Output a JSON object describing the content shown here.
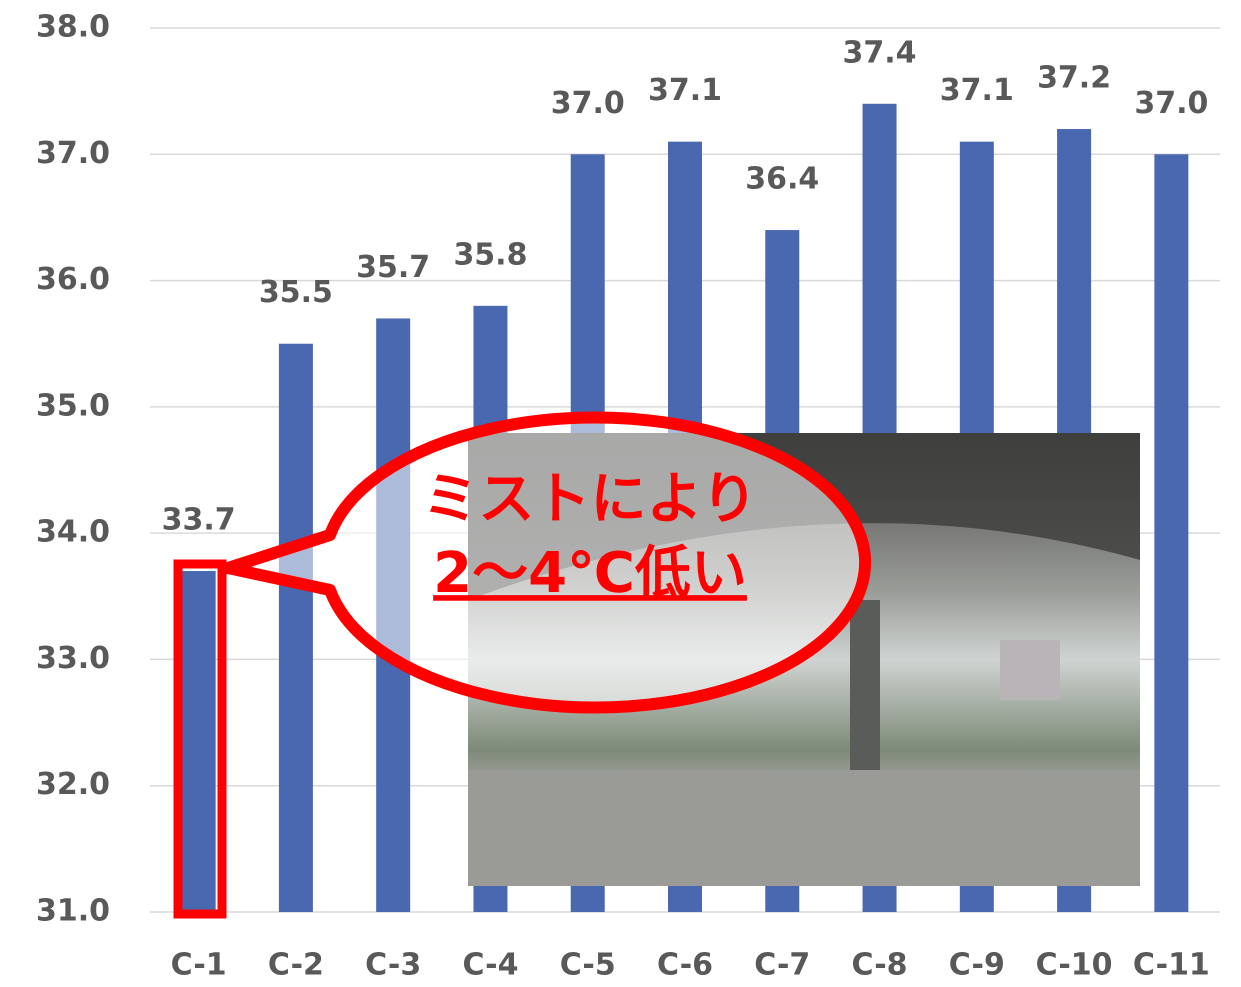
{
  "chart_data": {
    "type": "bar",
    "categories": [
      "C-1",
      "C-2",
      "C-3",
      "C-4",
      "C-5",
      "C-6",
      "C-7",
      "C-8",
      "C-9",
      "C-10",
      "C-11"
    ],
    "values": [
      33.7,
      35.5,
      35.7,
      35.8,
      37.0,
      37.1,
      36.4,
      37.4,
      37.1,
      37.2,
      37.0
    ],
    "value_labels": [
      "33.7",
      "35.5",
      "35.7",
      "35.8",
      "37.0",
      "37.1",
      "36.4",
      "37.4",
      "37.1",
      "37.2",
      "37.0"
    ],
    "color": "#4a68b0",
    "ylim": [
      31,
      38
    ],
    "yticks": [
      {
        "value": 31,
        "label": "31.0"
      },
      {
        "value": 32,
        "label": "32.0"
      },
      {
        "value": 33,
        "label": "33.0"
      },
      {
        "value": 34,
        "label": "34.0"
      },
      {
        "value": 35,
        "label": "35.0"
      },
      {
        "value": 36,
        "label": "36.0"
      },
      {
        "value": 37,
        "label": "37.0"
      },
      {
        "value": 38,
        "label": "38.0"
      }
    ],
    "grid": true,
    "annotations": [
      "ミストにより",
      "2～4℃低い"
    ]
  }
}
